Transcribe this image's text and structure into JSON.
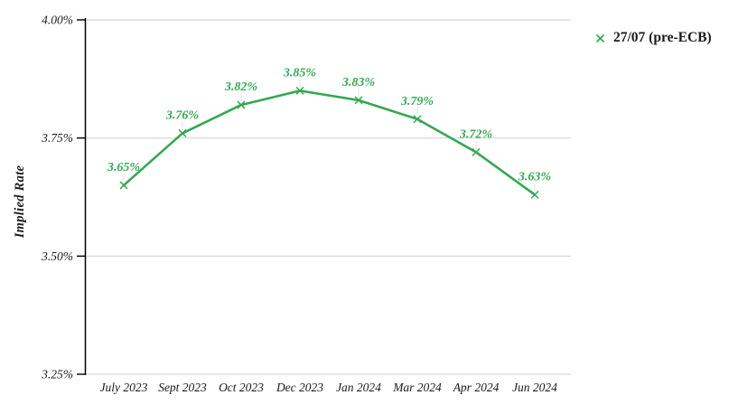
{
  "chart_data": {
    "type": "line",
    "title": "",
    "ylabel": "Implied Rate",
    "xlabel": "",
    "categories": [
      "July 2023",
      "Sept 2023",
      "Oct 2023",
      "Dec 2023",
      "Jan 2024",
      "Mar 2024",
      "Apr 2024",
      "Jun 2024"
    ],
    "series": [
      {
        "name": "27/07 (pre-ECB)",
        "values": [
          3.65,
          3.76,
          3.82,
          3.85,
          3.83,
          3.79,
          3.72,
          3.63
        ],
        "point_labels": [
          "3.65%",
          "3.76%",
          "3.82%",
          "3.85%",
          "3.83%",
          "3.79%",
          "3.72%",
          "3.63%"
        ],
        "marker": "x"
      }
    ],
    "y_ticks": [
      {
        "value": 4.0,
        "label": "4.00%"
      },
      {
        "value": 3.75,
        "label": "3.75%"
      },
      {
        "value": 3.5,
        "label": "3.50%"
      },
      {
        "value": 3.25,
        "label": "3.25%"
      }
    ],
    "ylim": [
      3.25,
      4.0
    ],
    "grid": "horizontal",
    "legend_position": "top-right"
  },
  "legend": {
    "label": "27/07 (pre-ECB)"
  },
  "colors": {
    "series_green": "#34a853",
    "gridline": "#d6d6d6",
    "axis": "#000000",
    "text": "#1a1a1a",
    "leader_line": "#e2e2e2",
    "background": "#ffffff"
  }
}
